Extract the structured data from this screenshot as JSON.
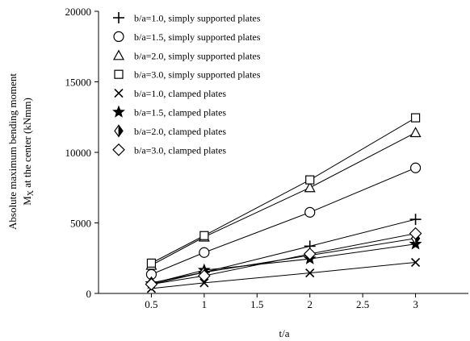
{
  "chart_data": {
    "type": "line",
    "title": "",
    "xlabel": "t/a",
    "ylabel_line1": "Absolute maximum bending moment",
    "ylabel_line2_main": "M",
    "ylabel_line2_sub": "X",
    "ylabel_line2_rest": " at the center (kNmm)",
    "xlim": [
      0,
      3.5
    ],
    "ylim": [
      0,
      20000
    ],
    "xticks": [
      0.5,
      1,
      1.5,
      2,
      2.5,
      3
    ],
    "xtick_labels": [
      "0.5",
      "1",
      "1.5",
      "2",
      "2.5",
      "3"
    ],
    "yticks": [
      0,
      5000,
      10000,
      15000,
      20000
    ],
    "ytick_labels": [
      "0",
      "5000",
      "10000",
      "15000",
      "20000"
    ],
    "grid": false,
    "legend_position": "top-left",
    "series": [
      {
        "name": "b/a=1.0, simply supported plates",
        "marker": "plus",
        "x": [
          0.5,
          1,
          2,
          3
        ],
        "y": [
          650,
          1500,
          3350,
          5250
        ]
      },
      {
        "name": "b/a=1.5, simply supported plates",
        "marker": "circle",
        "x": [
          0.5,
          1,
          2,
          3
        ],
        "y": [
          1350,
          2900,
          5750,
          8900
        ]
      },
      {
        "name": "b/a=2.0, simply supported plates",
        "marker": "triangle",
        "x": [
          0.5,
          1,
          2,
          3
        ],
        "y": [
          2000,
          4000,
          7500,
          11400
        ]
      },
      {
        "name": "b/a=3.0, simply supported plates",
        "marker": "square",
        "x": [
          0.5,
          1,
          2,
          3
        ],
        "y": [
          2150,
          4100,
          8050,
          12450
        ]
      },
      {
        "name": "b/a=1.0, clamped plates",
        "marker": "x",
        "x": [
          0.5,
          1,
          2,
          3
        ],
        "y": [
          350,
          750,
          1450,
          2200
        ]
      },
      {
        "name": "b/a=1.5, clamped plates",
        "marker": "star",
        "x": [
          0.5,
          1,
          2,
          3
        ],
        "y": [
          700,
          1650,
          2450,
          3500
        ]
      },
      {
        "name": "b/a=2.0, clamped plates",
        "marker": "diamond-half",
        "x": [
          0.5,
          1,
          2,
          3
        ],
        "y": [
          750,
          1500,
          2700,
          3900
        ]
      },
      {
        "name": "b/a=3.0, clamped plates",
        "marker": "diamond",
        "x": [
          0.5,
          1,
          2,
          3
        ],
        "y": [
          650,
          1250,
          2800,
          4250
        ]
      }
    ]
  }
}
